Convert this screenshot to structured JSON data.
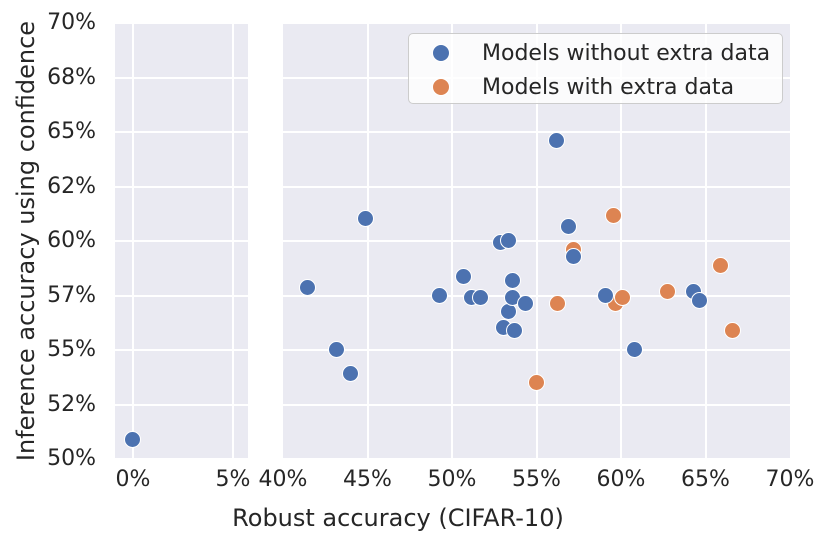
{
  "style": {
    "figure_background": "#ffffff",
    "panel_background": "#eaeaf2",
    "grid_color": "#ffffff",
    "text_color": "#262626",
    "legend_border_color": "#cccccc",
    "marker_edge_color": "#ffffff"
  },
  "chart_data": {
    "type": "scatter",
    "title": "",
    "xlabel": "Robust accuracy (CIFAR-10)",
    "ylabel": "Inference accuracy using confidence",
    "grid": true,
    "legend_position": "upper right",
    "x_axis": {
      "broken_axis": true,
      "panels": [
        {
          "id": "left",
          "tick_values": [
            0,
            5
          ],
          "tick_labels": [
            "0%",
            "5%"
          ],
          "xlim": [
            -0.9,
            5.75
          ]
        },
        {
          "id": "right",
          "tick_values": [
            40,
            45,
            50,
            55,
            60,
            65,
            70
          ],
          "tick_labels": [
            "40%",
            "45%",
            "50%",
            "55%",
            "60%",
            "65%",
            "70%"
          ],
          "xlim": [
            40,
            70
          ]
        }
      ]
    },
    "y_axis": {
      "tick_values": [
        50,
        52,
        55,
        57,
        60,
        62,
        65,
        68,
        70
      ],
      "tick_labels": [
        "50%",
        "52%",
        "55%",
        "57%",
        "60%",
        "62%",
        "65%",
        "68%",
        "70%"
      ],
      "ylim": [
        50,
        70
      ],
      "scale": "non-linear: ticks evenly spaced"
    },
    "series": [
      {
        "name": "Models without extra data",
        "color": "#4c72b0",
        "points": [
          [
            0.0,
            50.7
          ],
          [
            41.5,
            57.4
          ],
          [
            43.2,
            55.0
          ],
          [
            44.0,
            53.7
          ],
          [
            44.9,
            60.8
          ],
          [
            49.3,
            57.0
          ],
          [
            50.7,
            58.0
          ],
          [
            51.2,
            56.9
          ],
          [
            51.7,
            56.9
          ],
          [
            52.9,
            59.9
          ],
          [
            53.4,
            60.0
          ],
          [
            53.1,
            55.8
          ],
          [
            53.4,
            56.4
          ],
          [
            53.6,
            57.8
          ],
          [
            53.6,
            56.9
          ],
          [
            53.7,
            55.7
          ],
          [
            54.4,
            56.7
          ],
          [
            56.2,
            64.5
          ],
          [
            56.9,
            60.5
          ],
          [
            57.2,
            59.1
          ],
          [
            59.1,
            57.0
          ],
          [
            60.8,
            55.0
          ],
          [
            64.3,
            57.2
          ],
          [
            64.7,
            56.8
          ]
        ]
      },
      {
        "name": "Models with extra data",
        "color": "#dd8452",
        "points": [
          [
            55.0,
            53.2
          ],
          [
            56.3,
            56.7
          ],
          [
            57.2,
            59.5
          ],
          [
            59.6,
            60.9
          ],
          [
            59.7,
            56.7
          ],
          [
            60.1,
            56.9
          ],
          [
            62.8,
            57.2
          ],
          [
            65.9,
            58.6
          ],
          [
            66.6,
            55.7
          ]
        ]
      }
    ]
  }
}
